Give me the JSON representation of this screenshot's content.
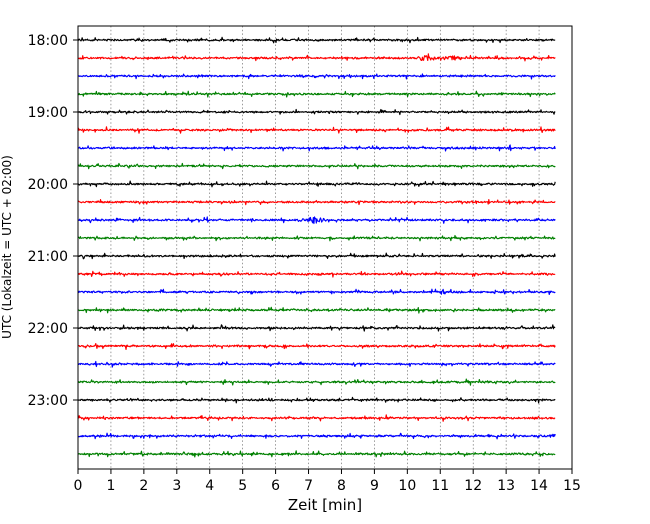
{
  "chart_data": {
    "type": "line",
    "title": "",
    "xlabel": "Zeit  [min]",
    "ylabel": "UTC (Lokalzeit = UTC + 02:00)",
    "xlim": [
      0,
      15
    ],
    "x_ticks": [
      "0",
      "1",
      "2",
      "3",
      "4",
      "5",
      "6",
      "7",
      "8",
      "9",
      "10",
      "11",
      "12",
      "13",
      "14",
      "15"
    ],
    "y_start_time": "18:00",
    "y_tick_labels": [
      "18:00",
      "19:00",
      "20:00",
      "21:00",
      "22:00",
      "23:00"
    ],
    "trace_interval_min": 15,
    "trace_count": 24,
    "trace_colors": [
      "#000000",
      "#ff0000",
      "#0000ff",
      "#008000"
    ],
    "grid": {
      "x": true,
      "y": false,
      "style": "dotted"
    },
    "legend": "none",
    "series": [
      {
        "values": [
          [
            0,
            0
          ],
          [
            14.5,
            0
          ]
        ]
      }
    ],
    "events": [
      {
        "trace": 1,
        "minute": 10.6,
        "amplitude": 0.9
      },
      {
        "trace": 1,
        "minute": 11.4,
        "amplitude": 0.7
      },
      {
        "trace": 10,
        "minute": 7.2,
        "amplitude": 1.2
      },
      {
        "trace": 22,
        "minute": 14.6,
        "amplitude": 0.8
      }
    ]
  }
}
